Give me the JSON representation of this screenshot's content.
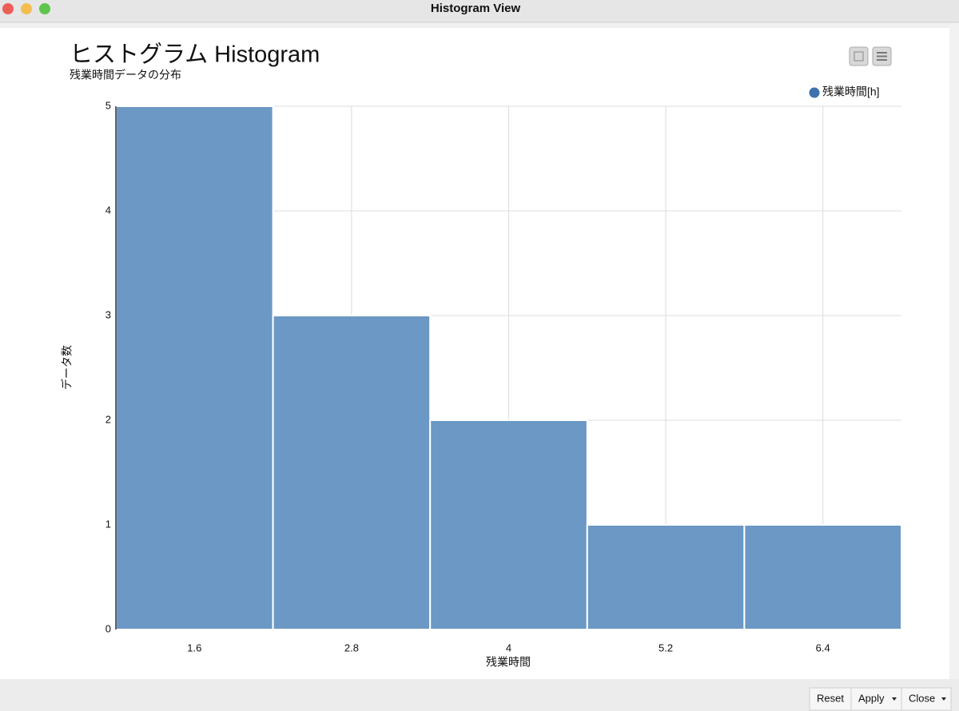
{
  "window": {
    "title": "Histogram View"
  },
  "buttons": [
    "Reset",
    "Apply",
    "Close"
  ],
  "chart_data": {
    "type": "histogram",
    "title": "ヒストグラム Histogram",
    "subtitle": "残業時間データの分布",
    "x_label": "残業時間",
    "y_label": "データ数",
    "bins": [
      1.0,
      2.2,
      3.4,
      4.6,
      5.8,
      7.0
    ],
    "series": [
      {
        "name": "残業時間[h]",
        "color": "#6b98c4",
        "values": [
          5,
          3,
          2,
          1,
          1
        ]
      }
    ],
    "xlim": [
      1.0,
      7.0
    ],
    "xticks": [
      1.6,
      2.8,
      4,
      5.2,
      6.4
    ],
    "ylim": [
      0,
      5
    ],
    "yticks": [
      0,
      1,
      2,
      3,
      4,
      5
    ],
    "grid": true,
    "legend": "top-right"
  }
}
